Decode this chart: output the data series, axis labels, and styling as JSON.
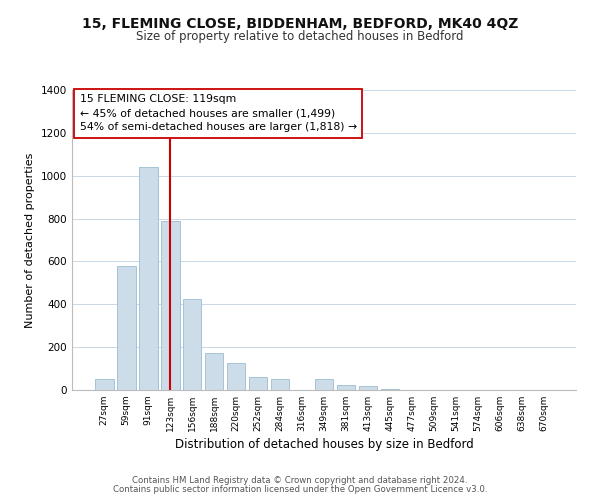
{
  "title": "15, FLEMING CLOSE, BIDDENHAM, BEDFORD, MK40 4QZ",
  "subtitle": "Size of property relative to detached houses in Bedford",
  "xlabel": "Distribution of detached houses by size in Bedford",
  "ylabel": "Number of detached properties",
  "bar_labels": [
    "27sqm",
    "59sqm",
    "91sqm",
    "123sqm",
    "156sqm",
    "188sqm",
    "220sqm",
    "252sqm",
    "284sqm",
    "316sqm",
    "349sqm",
    "381sqm",
    "413sqm",
    "445sqm",
    "477sqm",
    "509sqm",
    "541sqm",
    "574sqm",
    "606sqm",
    "638sqm",
    "670sqm"
  ],
  "bar_values": [
    50,
    580,
    1040,
    790,
    425,
    175,
    125,
    60,
    50,
    0,
    50,
    25,
    20,
    5,
    2,
    0,
    0,
    0,
    0,
    0,
    0
  ],
  "bar_color": "#ccdce8",
  "bar_edge_color": "#9bbdd0",
  "vline_x": 3,
  "vline_color": "#cc0000",
  "ylim": [
    0,
    1400
  ],
  "yticks": [
    0,
    200,
    400,
    600,
    800,
    1000,
    1200,
    1400
  ],
  "annotation_title": "15 FLEMING CLOSE: 119sqm",
  "annotation_line1": "← 45% of detached houses are smaller (1,499)",
  "annotation_line2": "54% of semi-detached houses are larger (1,818) →",
  "footnote1": "Contains HM Land Registry data © Crown copyright and database right 2024.",
  "footnote2": "Contains public sector information licensed under the Open Government Licence v3.0.",
  "background_color": "#ffffff",
  "grid_color": "#c8d8e8"
}
